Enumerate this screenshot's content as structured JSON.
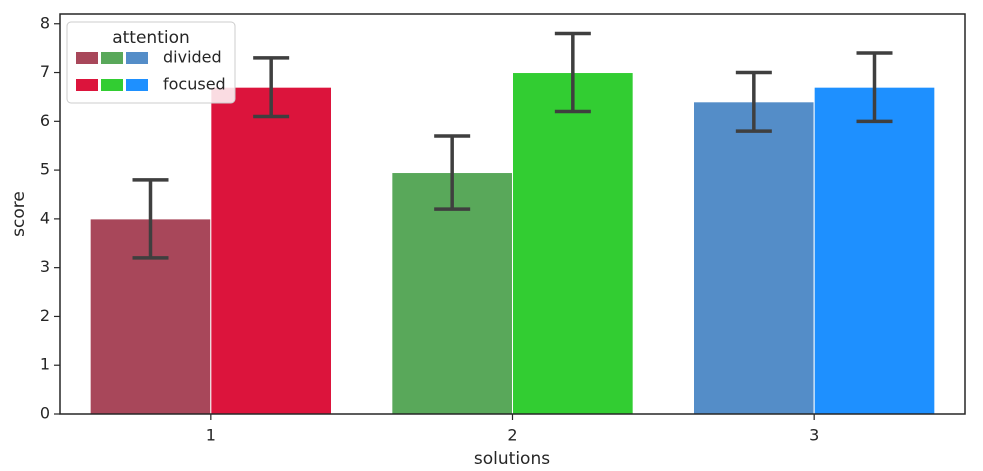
{
  "chart_data": {
    "type": "bar",
    "x_label": "solutions",
    "y_label": "score",
    "categories": [
      "1",
      "2",
      "3"
    ],
    "series": [
      {
        "name": "divided",
        "colors": [
          "#a8475a",
          "#59a85a",
          "#548dc8"
        ],
        "values": [
          4.0,
          4.95,
          6.4
        ],
        "ci_low": [
          3.2,
          4.2,
          5.8
        ],
        "ci_high": [
          4.8,
          5.7,
          7.0
        ]
      },
      {
        "name": "focused",
        "colors": [
          "#dc143c",
          "#32cd32",
          "#1e90ff"
        ],
        "values": [
          6.7,
          7.0,
          6.7
        ],
        "ci_low": [
          6.1,
          6.2,
          6.0
        ],
        "ci_high": [
          7.3,
          7.8,
          7.4
        ]
      }
    ],
    "ylim": [
      0,
      8.2
    ],
    "yticks": [
      0,
      1,
      2,
      3,
      4,
      5,
      6,
      7,
      8
    ],
    "legend_title": "attention",
    "legend_position": "upper left",
    "grid": false
  }
}
